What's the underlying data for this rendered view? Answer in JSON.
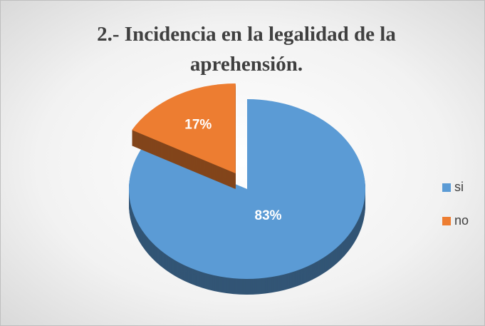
{
  "chart_data": {
    "type": "pie",
    "title": "2.- Incidencia en la legalidad de la aprehensión.",
    "categories": [
      "si",
      "no"
    ],
    "values": [
      83,
      17
    ],
    "value_labels": [
      "83%",
      "17%"
    ],
    "colors": [
      "#5b9bd5",
      "#ed7d31"
    ],
    "legend": "right"
  }
}
